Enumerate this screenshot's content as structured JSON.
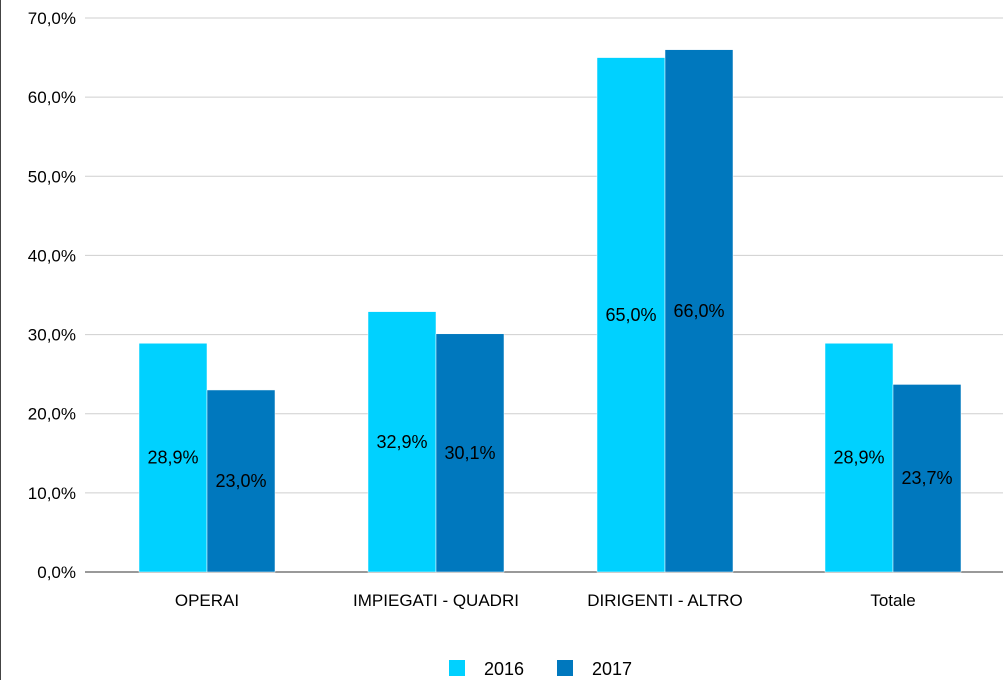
{
  "chart_data": {
    "type": "bar",
    "categories": [
      "OPERAI",
      "IMPIEGATI - QUADRI",
      "DIRIGENTI - ALTRO",
      "Totale"
    ],
    "series": [
      {
        "name": "2016",
        "values": [
          28.9,
          32.9,
          65.0,
          28.9
        ],
        "labels": [
          "28,9%",
          "32,9%",
          "65,0%",
          "28,9%"
        ]
      },
      {
        "name": "2017",
        "values": [
          23.0,
          30.1,
          66.0,
          23.7
        ],
        "labels": [
          "23,0%",
          "30,1%",
          "66,0%",
          "23,7%"
        ]
      }
    ],
    "yticks": [
      "0,0%",
      "10,0%",
      "20,0%",
      "30,0%",
      "40,0%",
      "50,0%",
      "60,0%",
      "70,0%"
    ],
    "ylim": [
      0,
      70
    ],
    "grid": true,
    "legend_position": "bottom-center",
    "title": "",
    "xlabel": "",
    "ylabel": ""
  },
  "colors": {
    "series_2016": "#00d1ff",
    "series_2017": "#0078be",
    "grid": "#cfcfcf",
    "axis": "#333333",
    "text": "#000000"
  }
}
